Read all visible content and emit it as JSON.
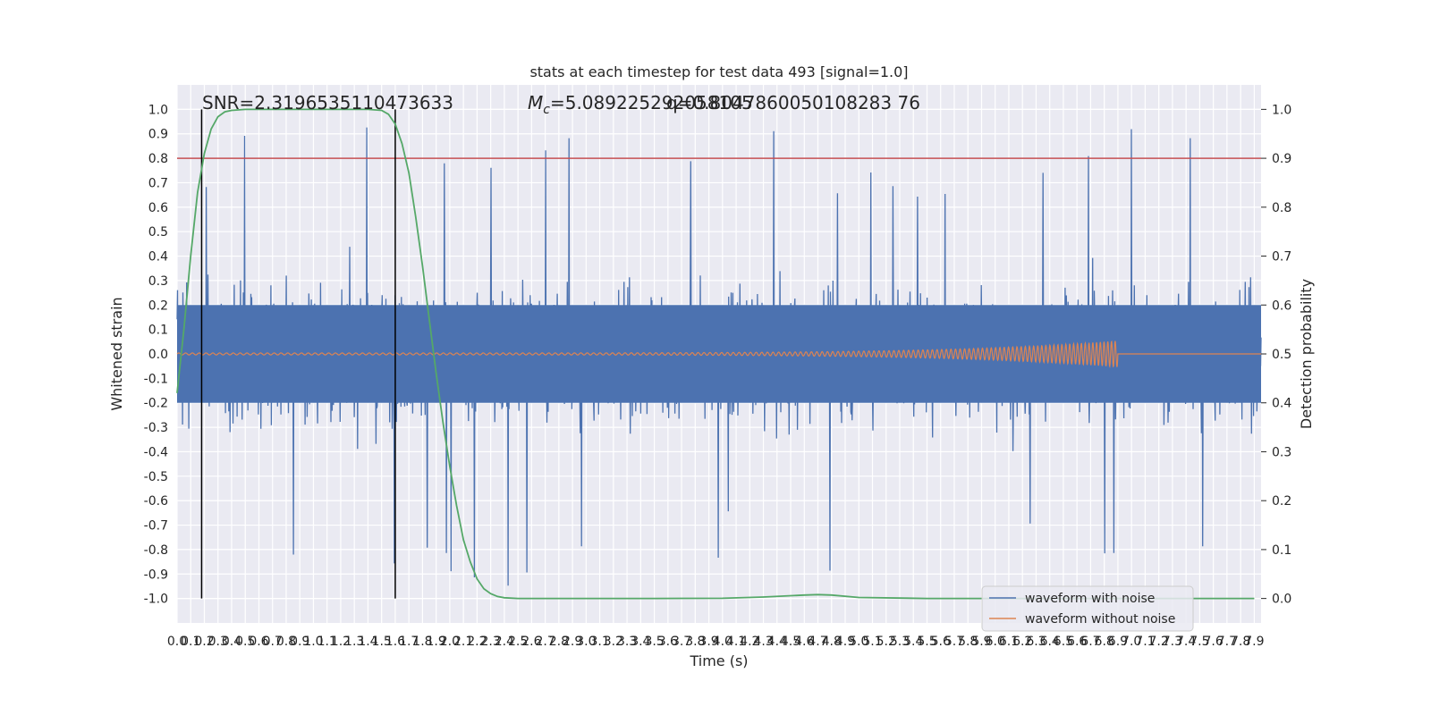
{
  "chart_data": {
    "type": "line",
    "title": "stats at each timestep for test data 493 [signal=1.0]",
    "xlabel": "Time (s)",
    "ylabel": "Whitened strain",
    "y2label": "Detection probability",
    "xlim": [
      0.0,
      7.95
    ],
    "ylim": [
      -1.1,
      1.1
    ],
    "y2lim": [
      -0.05,
      1.05
    ],
    "x_ticks": [
      "0.0",
      "0.1",
      "0.2",
      "0.3",
      "0.4",
      "0.5",
      "0.6",
      "0.7",
      "0.8",
      "0.9",
      "1.0",
      "1.1",
      "1.2",
      "1.3",
      "1.4",
      "1.5",
      "1.6",
      "1.7",
      "1.8",
      "1.9",
      "2.0",
      "2.1",
      "2.2",
      "2.3",
      "2.4",
      "2.5",
      "2.6",
      "2.7",
      "2.8",
      "2.9",
      "3.0",
      "3.1",
      "3.2",
      "3.3",
      "3.4",
      "3.5",
      "3.6",
      "3.7",
      "3.8",
      "3.9",
      "4.0",
      "4.1",
      "4.2",
      "4.3",
      "4.4",
      "4.5",
      "4.6",
      "4.7",
      "4.8",
      "4.9",
      "5.0",
      "5.1",
      "5.2",
      "5.3",
      "5.4",
      "5.5",
      "5.6",
      "5.7",
      "5.8",
      "5.9",
      "6.0",
      "6.1",
      "6.2",
      "6.3",
      "6.4",
      "6.5",
      "6.6",
      "6.7",
      "6.8",
      "6.9",
      "7.0",
      "7.1",
      "7.2",
      "7.3",
      "7.4",
      "7.5",
      "7.6",
      "7.7",
      "7.8",
      "7.9"
    ],
    "y_ticks": [
      "1.0",
      "0.9",
      "0.8",
      "0.7",
      "0.6",
      "0.5",
      "0.4",
      "0.3",
      "0.2",
      "0.1",
      "0.0",
      "-0.1",
      "-0.2",
      "-0.3",
      "-0.4",
      "-0.5",
      "-0.6",
      "-0.7",
      "-0.8",
      "-0.9",
      "-1.0"
    ],
    "y2_ticks": [
      "1.0",
      "0.9",
      "0.8",
      "0.7",
      "0.6",
      "0.5",
      "0.4",
      "0.3",
      "0.2",
      "0.1",
      "0.0"
    ],
    "annotations": {
      "snr": "SNR=2.3196535110473633",
      "mc_symbol": "M",
      "mc_subscript": "c",
      "mc_value": "=5.089225292058105",
      "q_text": "q=0.8047860050108283 76"
    },
    "legend": {
      "placement": "lower-right",
      "entries": [
        "waveform with noise",
        "waveform without noise"
      ]
    },
    "grid": true,
    "threshold": {
      "y2": 0.9,
      "color": "#c44e52"
    },
    "vlines": [
      0.18,
      1.6
    ],
    "series": [
      {
        "name": "waveform with noise",
        "color": "#4c72b0",
        "noise_envelope": 0.55,
        "peak_max": 1.0,
        "peak_min": -1.0
      },
      {
        "name": "waveform without noise",
        "color": "#dd8452",
        "x_end": 6.9,
        "max_amplitude": 0.05
      },
      {
        "color": "#55a868",
        "x": [
          0.0,
          0.05,
          0.1,
          0.15,
          0.2,
          0.25,
          0.3,
          0.35,
          0.4,
          0.5,
          0.6,
          0.8,
          1.0,
          1.2,
          1.4,
          1.5,
          1.55,
          1.6,
          1.65,
          1.7,
          1.75,
          1.8,
          1.85,
          1.9,
          1.95,
          2.0,
          2.05,
          2.1,
          2.15,
          2.2,
          2.25,
          2.3,
          2.35,
          2.4,
          2.5,
          3.0,
          3.5,
          4.0,
          4.3,
          4.6,
          4.7,
          4.8,
          5.0,
          5.5,
          6.0,
          6.5,
          7.0,
          7.5,
          7.9
        ],
        "y": [
          0.42,
          0.55,
          0.7,
          0.83,
          0.91,
          0.96,
          0.985,
          0.995,
          0.998,
          1.0,
          1.0,
          1.0,
          1.0,
          1.0,
          1.0,
          0.998,
          0.99,
          0.97,
          0.93,
          0.87,
          0.78,
          0.68,
          0.57,
          0.46,
          0.36,
          0.27,
          0.19,
          0.12,
          0.075,
          0.04,
          0.02,
          0.01,
          0.004,
          0.0015,
          0.0,
          0.0,
          0.0,
          0.0005,
          0.003,
          0.007,
          0.008,
          0.007,
          0.002,
          0.0,
          0.0,
          0.0,
          0.0,
          0.0,
          0.0
        ]
      }
    ]
  }
}
